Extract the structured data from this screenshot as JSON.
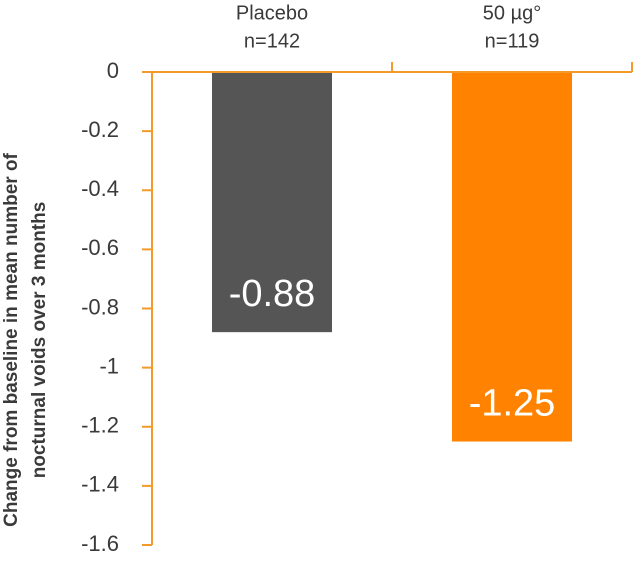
{
  "chart_data": {
    "type": "bar",
    "categories": [
      "Placebo",
      "50 µg°"
    ],
    "sample_sizes": [
      "n=142",
      "n=119"
    ],
    "values": [
      -0.88,
      -1.25
    ],
    "colors": [
      "#555555",
      "#ff8300"
    ],
    "ylabel": [
      "Change from baseline in mean number of",
      "nocturnal voids over 3 months"
    ],
    "ylim": [
      0,
      -1.6
    ],
    "yticks": [
      0,
      -0.2,
      -0.4,
      -0.6,
      -0.8,
      -1,
      -1.2,
      -1.4,
      -1.6
    ],
    "axis_color": "#f39a2b"
  }
}
